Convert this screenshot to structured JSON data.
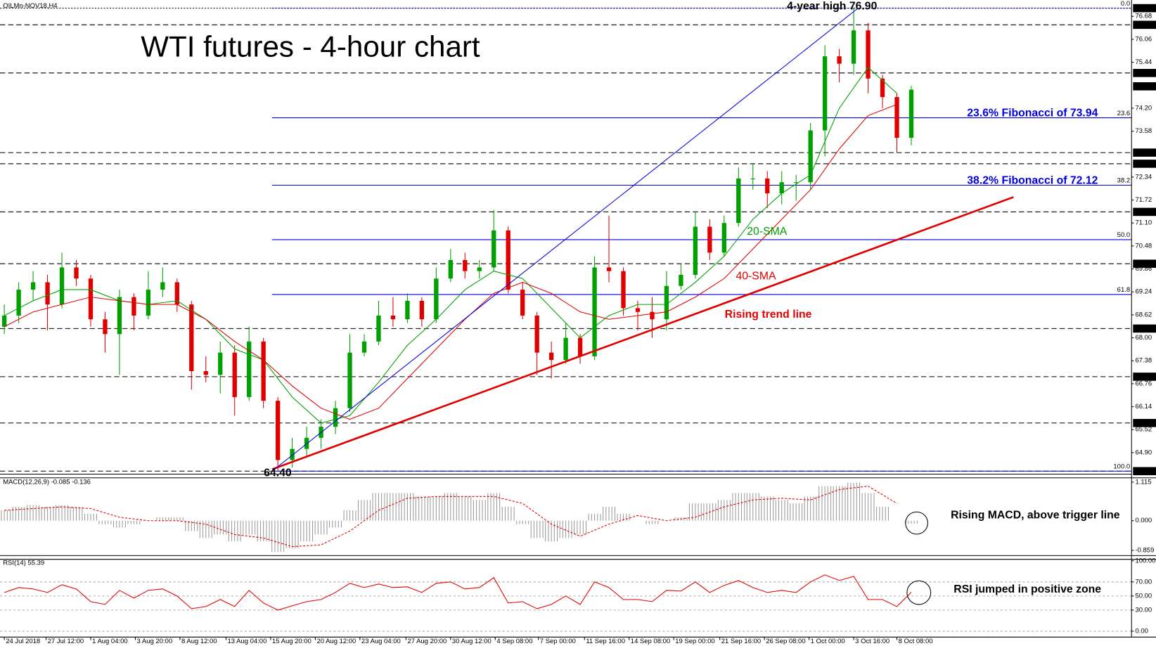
{
  "chart_data": {
    "type": "candlestick",
    "symbol": "OILMn-NOV18,H4",
    "title": "WTI futures - 4-hour chart",
    "ylim": [
      64.32,
      77.12
    ],
    "xlim": [
      -0.3,
      78.3
    ],
    "yticks": [
      76.68,
      76.06,
      75.44,
      {
        "value": 74.2,
        "label": "74.20"
      },
      73.58,
      72.34,
      71.72,
      {
        "value": 71.1,
        "label": "71.10"
      },
      70.48,
      69.86,
      69.24,
      68.62,
      {
        "value": 68,
        "label": "68.00"
      },
      67.38,
      66.76,
      66.14,
      65.52,
      {
        "value": 64.9,
        "label": "64.90"
      }
    ],
    "levels": [
      {
        "value": 76.9,
        "label": "76.90"
      },
      76.45,
      75.15,
      {
        "value": 73,
        "label": "73.00"
      },
      {
        "value": 72.7,
        "label": "72.70"
      },
      {
        "value": 71.4,
        "label": "71.40"
      },
      {
        "value": 70,
        "label": "70.00"
      },
      68.25,
      66.95,
      {
        "value": 65.7,
        "label": "65.70"
      },
      {
        "value": 64.4,
        "label": "64.40"
      }
    ],
    "last_price": 74.79,
    "fibonacci": [
      {
        "level": "0.0",
        "price": 76.9
      },
      {
        "level": "23.6",
        "price": 73.94
      },
      {
        "level": "38.2",
        "price": 72.12
      },
      {
        "level": "50.0",
        "price": 70.65
      },
      {
        "level": "61.8",
        "price": 69.17
      },
      {
        "level": "100.0",
        "price": 64.4
      }
    ],
    "fib_start": 18.6,
    "xticks": [
      {
        "value": 0,
        "label": "24 Jul 2018"
      },
      {
        "value": 2.9,
        "label": "27 Jul 12:00"
      },
      {
        "value": 6.0,
        "label": "1 Aug 04:00"
      },
      {
        "value": 9.1,
        "label": "3 Aug 20:00"
      },
      {
        "value": 12.2,
        "label": "8 Aug 12:00"
      },
      {
        "value": 15.4,
        "label": "13 Aug 04:00"
      },
      {
        "value": 18.5,
        "label": "15 Aug 20:00"
      },
      {
        "value": 21.6,
        "label": "20 Aug 12:00"
      },
      {
        "value": 24.7,
        "label": "23 Aug 04:00"
      },
      {
        "value": 27.9,
        "label": "27 Aug 20:00"
      },
      {
        "value": 31.0,
        "label": "30 Aug 12:00"
      },
      {
        "value": 34.1,
        "label": "4 Sep 08:00"
      },
      {
        "value": 37.1,
        "label": "7 Sep 00:00"
      },
      {
        "value": 40.3,
        "label": "11 Sep 16:00"
      },
      {
        "value": 43.4,
        "label": "14 Sep 08:00"
      },
      {
        "value": 46.5,
        "label": "19 Sep 00:00"
      },
      {
        "value": 49.7,
        "label": "21 Sep 16:00"
      },
      {
        "value": 52.8,
        "label": "26 Sep 08:00"
      },
      {
        "value": 55.9,
        "label": "1 Oct 00:00"
      },
      {
        "value": 59.0,
        "label": "3 Oct 16:00"
      },
      {
        "value": 62.0,
        "label": "8 Oct 08:00"
      }
    ],
    "candles": [
      [
        68.3,
        68.9,
        68.1,
        68.6
      ],
      [
        68.6,
        69.5,
        68.4,
        69.3
      ],
      [
        69.3,
        69.8,
        69.0,
        69.5
      ],
      [
        69.5,
        69.7,
        68.2,
        68.9
      ],
      [
        68.9,
        70.3,
        68.8,
        69.9
      ],
      [
        69.9,
        70.1,
        69.4,
        69.6
      ],
      [
        69.6,
        69.7,
        68.3,
        68.5
      ],
      [
        68.5,
        68.7,
        67.6,
        68.1
      ],
      [
        68.1,
        69.3,
        67.0,
        69.1
      ],
      [
        69.1,
        69.2,
        68.2,
        68.6
      ],
      [
        68.6,
        69.8,
        68.5,
        69.3
      ],
      [
        69.3,
        69.9,
        69.1,
        69.5
      ],
      [
        69.5,
        69.6,
        68.7,
        68.9
      ],
      [
        68.9,
        69.0,
        66.6,
        67.1
      ],
      [
        67.1,
        67.5,
        66.8,
        67.0
      ],
      [
        67.0,
        67.9,
        66.5,
        67.6
      ],
      [
        67.6,
        67.8,
        65.9,
        66.4
      ],
      [
        66.4,
        68.3,
        66.3,
        67.9
      ],
      [
        67.9,
        68.0,
        66.1,
        66.3
      ],
      [
        66.3,
        66.4,
        64.4,
        64.7
      ],
      [
        64.7,
        65.3,
        64.5,
        65.0
      ],
      [
        65.0,
        65.6,
        64.8,
        65.3
      ],
      [
        65.3,
        65.8,
        65.0,
        65.6
      ],
      [
        65.6,
        66.3,
        65.4,
        66.1
      ],
      [
        66.1,
        68.1,
        66.0,
        67.6
      ],
      [
        67.6,
        68.1,
        67.5,
        67.9
      ],
      [
        67.9,
        69.0,
        67.8,
        68.6
      ],
      [
        68.6,
        69.1,
        68.3,
        68.5
      ],
      [
        68.5,
        69.2,
        68.4,
        69.0
      ],
      [
        69.0,
        69.1,
        68.3,
        68.5
      ],
      [
        68.5,
        69.9,
        68.4,
        69.6
      ],
      [
        69.6,
        70.4,
        69.5,
        70.1
      ],
      [
        70.1,
        70.3,
        69.6,
        69.8
      ],
      [
        69.8,
        70.1,
        69.6,
        69.9
      ],
      [
        69.9,
        71.45,
        69.8,
        70.9
      ],
      [
        70.9,
        71.0,
        69.2,
        69.3
      ],
      [
        69.3,
        69.5,
        68.5,
        68.6
      ],
      [
        68.6,
        68.7,
        67.0,
        67.6
      ],
      [
        67.6,
        67.9,
        66.9,
        67.4
      ],
      [
        67.4,
        68.4,
        67.3,
        68.0
      ],
      [
        68.0,
        68.1,
        67.3,
        67.5
      ],
      [
        67.5,
        70.2,
        67.4,
        69.9
      ],
      [
        69.9,
        71.3,
        69.5,
        69.8
      ],
      [
        69.8,
        69.9,
        68.6,
        68.8
      ],
      [
        68.8,
        69.0,
        68.2,
        68.7
      ],
      [
        68.7,
        69.1,
        68.0,
        68.5
      ],
      [
        68.5,
        69.8,
        68.2,
        69.4
      ],
      [
        69.4,
        70.0,
        69.3,
        69.7
      ],
      [
        69.7,
        71.4,
        69.6,
        71.0
      ],
      [
        71.0,
        71.2,
        70.1,
        70.3
      ],
      [
        70.3,
        71.3,
        70.2,
        71.1
      ],
      [
        71.1,
        72.6,
        71.0,
        72.3
      ],
      [
        72.3,
        72.7,
        72.0,
        72.3
      ],
      [
        72.3,
        72.5,
        71.5,
        71.9
      ],
      [
        71.9,
        72.5,
        71.6,
        72.2
      ],
      [
        72.2,
        72.4,
        71.7,
        72.2
      ],
      [
        72.2,
        73.8,
        72.0,
        73.6
      ],
      [
        73.6,
        75.9,
        72.9,
        75.6
      ],
      [
        75.6,
        75.8,
        74.9,
        75.4
      ],
      [
        75.4,
        76.9,
        75.1,
        76.3
      ],
      [
        76.3,
        76.5,
        74.6,
        75.0
      ],
      [
        75.0,
        75.1,
        74.2,
        74.5
      ],
      [
        74.5,
        74.6,
        73.0,
        73.4
      ],
      [
        73.4,
        74.8,
        73.2,
        74.7
      ]
    ],
    "up_color": "#00a000",
    "down_color": "#e00000",
    "sma_x": [
      0,
      2,
      4,
      6,
      8,
      10,
      12,
      14,
      16,
      18,
      20,
      22,
      24,
      26,
      28,
      30,
      32,
      34,
      36,
      38,
      40,
      42,
      44,
      46,
      48,
      50,
      52,
      54,
      56,
      58,
      60,
      62
    ],
    "series": [
      {
        "name": "20-SMA",
        "color": "#00a000",
        "values": [
          68.6,
          69.0,
          69.3,
          69.3,
          69.0,
          68.9,
          69.0,
          68.5,
          67.7,
          67.4,
          66.4,
          65.7,
          65.9,
          66.8,
          67.8,
          68.5,
          69.3,
          69.8,
          69.6,
          68.8,
          68.0,
          68.6,
          68.9,
          68.9,
          69.5,
          70.2,
          71.2,
          71.9,
          72.4,
          74.2,
          75.3,
          74.6
        ]
      },
      {
        "name": "40-SMA",
        "color": "#e00000",
        "values": [
          68.3,
          68.7,
          68.9,
          69.1,
          69.0,
          68.9,
          68.9,
          68.5,
          67.9,
          67.4,
          66.7,
          66.1,
          65.8,
          66.1,
          66.9,
          67.7,
          68.5,
          69.2,
          69.5,
          69.2,
          68.7,
          68.5,
          68.6,
          68.7,
          69.1,
          69.6,
          70.4,
          71.2,
          72.0,
          73.1,
          74.0,
          74.3
        ]
      }
    ],
    "trend_line": {
      "name": "Rising trend line",
      "color": "#e00000",
      "x": [
        18.6,
        70.1
      ],
      "values": [
        64.45,
        71.8
      ]
    },
    "swing_line": {
      "color": "#0000e0",
      "x": [
        18.6,
        59.3
      ],
      "values": [
        64.4,
        76.9
      ]
    },
    "annotations": {
      "high": "4-year high 76.90",
      "low": "64.40",
      "fib236": "23.6% Fibonacci of 73.94",
      "fib382": "38.2% Fibonacci of 72.12"
    },
    "macd": {
      "label": "MACD(12,26,9) -0.085 -0.136",
      "ylim": [
        -1.01,
        1.24
      ],
      "yticks": [
        1.115,
        {
          "value": 0,
          "label": "0.000"
        },
        -0.859
      ],
      "histogram": [
        0.3,
        0.4,
        0.45,
        0.4,
        0.45,
        0.4,
        0.2,
        -0.1,
        -0.2,
        -0.1,
        0.0,
        0.1,
        0.1,
        -0.3,
        -0.5,
        -0.4,
        -0.6,
        -0.4,
        -0.6,
        -0.9,
        -0.8,
        -0.6,
        -0.4,
        -0.2,
        0.3,
        0.6,
        0.8,
        0.8,
        0.8,
        0.7,
        0.7,
        0.8,
        0.7,
        0.6,
        0.8,
        0.4,
        -0.1,
        -0.5,
        -0.6,
        -0.5,
        -0.4,
        0.2,
        0.4,
        0.2,
        0.0,
        -0.1,
        0.0,
        0.1,
        0.5,
        0.5,
        0.6,
        0.8,
        0.8,
        0.7,
        0.6,
        0.5,
        0.7,
        1.0,
        1.0,
        1.1,
        0.8,
        0.4,
        0.0,
        -0.085
      ],
      "signal": [
        0.3,
        0.35,
        0.4,
        0.35,
        0.1,
        0.0,
        0.0,
        -0.1,
        -0.4,
        -0.5,
        -0.75,
        -0.7,
        -0.3,
        0.3,
        0.65,
        0.7,
        0.7,
        0.7,
        0.5,
        -0.1,
        -0.45,
        -0.1,
        0.15,
        0.0,
        0.1,
        0.4,
        0.6,
        0.65,
        0.6,
        0.9,
        1.0,
        0.5
      ],
      "note": "Rising MACD, above trigger line"
    },
    "rsi": {
      "label": "RSI(14) 55.39",
      "ylim": [
        -8.4,
        102.1
      ],
      "yticks": [
        {
          "value": 100,
          "label": "100.00"
        },
        {
          "value": 70,
          "label": "70.00"
        },
        {
          "value": 50,
          "label": "50.00"
        },
        {
          "value": 30,
          "label": "30.00"
        },
        {
          "value": 0,
          "label": "0.00"
        }
      ],
      "values": [
        55,
        62,
        60,
        55,
        66,
        60,
        42,
        38,
        58,
        47,
        58,
        60,
        50,
        32,
        35,
        45,
        35,
        58,
        40,
        30,
        36,
        42,
        45,
        55,
        68,
        62,
        67,
        62,
        63,
        55,
        68,
        70,
        60,
        62,
        76,
        40,
        42,
        32,
        38,
        50,
        38,
        70,
        62,
        45,
        45,
        42,
        58,
        57,
        70,
        55,
        65,
        72,
        62,
        55,
        58,
        55,
        70,
        80,
        72,
        78,
        45,
        45,
        35,
        55.39
      ],
      "color": "#e00000",
      "note": "RSI jumped in positive zone"
    }
  }
}
